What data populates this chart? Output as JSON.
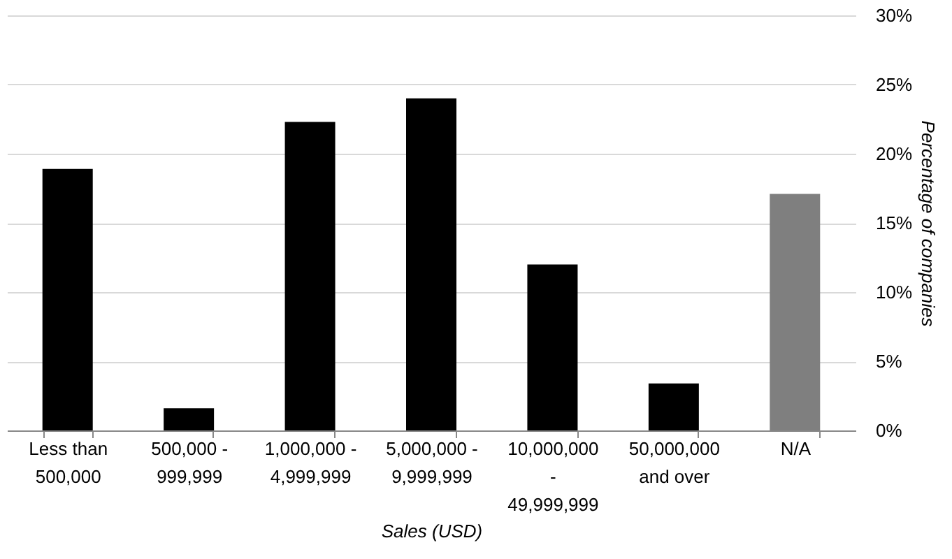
{
  "chart_data": {
    "type": "bar",
    "xlabel": "Sales (USD)",
    "ylabel": "Percentage of companies",
    "categories": [
      "Less than\n500,000",
      "500,000 -\n999,999",
      "1,000,000 -\n4,999,999",
      "5,000,000 -\n9,999,999",
      "10,000,000\n-\n49,999,999",
      "50,000,000\nand over",
      "N/A"
    ],
    "values": [
      18.9,
      1.6,
      22.3,
      24.0,
      12.0,
      3.4,
      17.1
    ],
    "colors": [
      "#000000",
      "#000000",
      "#000000",
      "#000000",
      "#000000",
      "#000000",
      "#7f7f7f"
    ],
    "ylim": [
      0,
      30
    ],
    "yticks": [
      {
        "value": 0,
        "label": "0%"
      },
      {
        "value": 5,
        "label": "5%"
      },
      {
        "value": 10,
        "label": "10%"
      },
      {
        "value": 15,
        "label": "15%"
      },
      {
        "value": 20,
        "label": "20%"
      },
      {
        "value": 25,
        "label": "25%"
      },
      {
        "value": 30,
        "label": "30%"
      }
    ],
    "grid": "y",
    "legend": false
  }
}
